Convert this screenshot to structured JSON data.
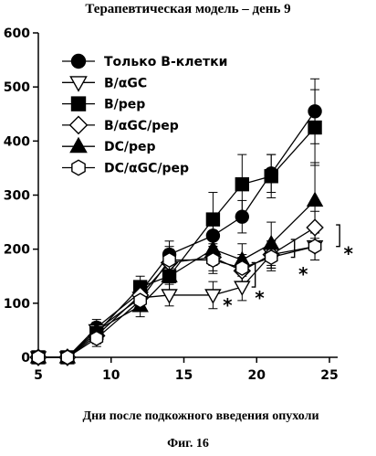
{
  "chart_data": {
    "type": "line",
    "title": "Терапевтическая модель – день 9",
    "xlabel": "Дни после подкожного введения опухоли",
    "ylabel": "",
    "caption": "Фиг. 16",
    "xlim": [
      5,
      26
    ],
    "ylim": [
      0,
      600
    ],
    "xticks": [
      5,
      10,
      15,
      20,
      25
    ],
    "yticks": [
      0,
      100,
      200,
      300,
      400,
      500,
      600
    ],
    "legend_position": "top-left",
    "series": [
      {
        "name": "Только B-клетки",
        "marker": "circle",
        "fill": "black",
        "x": [
          5,
          7,
          9,
          12,
          14,
          17,
          19,
          21,
          24
        ],
        "y": [
          0,
          0,
          55,
          120,
          190,
          225,
          260,
          340,
          455
        ],
        "err": [
          0,
          0,
          15,
          20,
          25,
          30,
          30,
          35,
          60
        ]
      },
      {
        "name": "B/αGC",
        "marker": "triangle-down",
        "fill": "white",
        "x": [
          5,
          7,
          9,
          12,
          14,
          17,
          19,
          21,
          24
        ],
        "y": [
          0,
          0,
          50,
          110,
          115,
          115,
          130,
          190,
          205
        ],
        "err": [
          0,
          0,
          15,
          20,
          20,
          25,
          25,
          25,
          25
        ]
      },
      {
        "name": "B/pep",
        "marker": "square",
        "fill": "black",
        "x": [
          5,
          7,
          9,
          12,
          14,
          17,
          19,
          21,
          24
        ],
        "y": [
          0,
          0,
          45,
          130,
          150,
          255,
          320,
          335,
          425
        ],
        "err": [
          0,
          0,
          15,
          20,
          25,
          50,
          55,
          40,
          70
        ]
      },
      {
        "name": "B/αGC/pep",
        "marker": "diamond",
        "fill": "white",
        "x": [
          5,
          7,
          9,
          12,
          14,
          17,
          19,
          21,
          24
        ],
        "y": [
          0,
          0,
          40,
          115,
          175,
          185,
          160,
          190,
          240
        ],
        "err": [
          0,
          0,
          15,
          20,
          25,
          25,
          25,
          25,
          30
        ]
      },
      {
        "name": "DC/pep",
        "marker": "triangle-up",
        "fill": "black",
        "x": [
          5,
          7,
          9,
          12,
          14,
          17,
          19,
          21,
          24
        ],
        "y": [
          0,
          0,
          50,
          95,
          150,
          200,
          180,
          210,
          290
        ],
        "err": [
          0,
          0,
          15,
          20,
          25,
          30,
          30,
          40,
          70
        ]
      },
      {
        "name": "DC/αGC/pep",
        "marker": "hexagon",
        "fill": "white",
        "x": [
          5,
          7,
          9,
          12,
          14,
          17,
          19,
          21,
          24
        ],
        "y": [
          0,
          0,
          35,
          105,
          180,
          180,
          165,
          185,
          205
        ],
        "err": [
          0,
          0,
          15,
          20,
          25,
          25,
          25,
          25,
          25
        ]
      }
    ],
    "annotations": [
      {
        "text": "*",
        "x": 18.0,
        "y": 105
      },
      {
        "text": "*",
        "x": 20.2,
        "y": 118
      },
      {
        "text": "*",
        "x": 23.2,
        "y": 162
      },
      {
        "text": "*",
        "x": 26.3,
        "y": 200
      }
    ]
  }
}
